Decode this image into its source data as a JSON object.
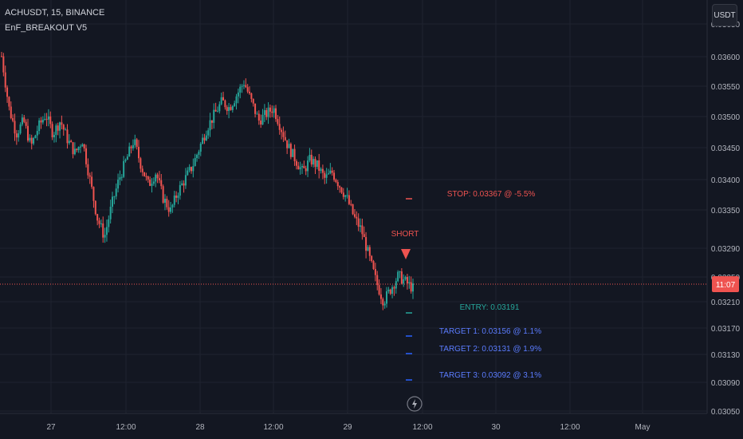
{
  "header": {
    "symbol_line": "ACHUSDT, 15, BINANCE",
    "indicator_name": "EnF_BREAKOUT V5",
    "currency_button": "USDT"
  },
  "price_axis": {
    "labels": [
      "0.03650",
      "0.03600",
      "0.03550",
      "0.03500",
      "0.03450",
      "0.03400",
      "0.03350",
      "0.03290",
      "0.03250",
      "0.03210",
      "0.03170",
      "0.03130",
      "0.03090",
      "0.03050"
    ],
    "current_price_tag": "11:07"
  },
  "time_axis": {
    "labels": [
      "27",
      "12:00",
      "28",
      "12:00",
      "29",
      "12:00",
      "30",
      "12:00",
      "May"
    ]
  },
  "annotations": {
    "stop": "STOP: 0.03367 @ -5.5%",
    "short": "SHORT",
    "entry": "ENTRY: 0.03191",
    "target1": "TARGET 1: 0.03156 @ 1.1%",
    "target2": "TARGET 2: 0.03131 @ 1.9%",
    "target3": "TARGET 3: 0.03092 @ 3.1%"
  },
  "colors": {
    "background": "#131722",
    "up": "#26a69a",
    "down": "#ef5350",
    "stop": "#ef5350",
    "entry": "#26a69a",
    "target": "#2962ff",
    "grid": "#1f2330"
  },
  "chart_data": {
    "type": "candlestick",
    "description_series": "ACHUSDT 15m close approximations",
    "closes": [
      0.036,
      0.0352,
      0.0348,
      0.035,
      0.0346,
      0.0349,
      0.0351,
      0.0348,
      0.035,
      0.0347,
      0.0345,
      0.0347,
      0.0341,
      0.0335,
      0.0332,
      0.0337,
      0.0341,
      0.0344,
      0.0347,
      0.0343,
      0.034,
      0.0342,
      0.0338,
      0.0336,
      0.0339,
      0.0341,
      0.0343,
      0.0346,
      0.0349,
      0.0351,
      0.0353,
      0.0352,
      0.0354,
      0.0356,
      0.0353,
      0.035,
      0.0351,
      0.0352,
      0.0349,
      0.0346,
      0.0344,
      0.0342,
      0.0344,
      0.0343,
      0.0341,
      0.0342,
      0.034,
      0.0338,
      0.0335,
      0.0333,
      0.0329,
      0.0325,
      0.0322,
      0.0324,
      0.0326,
      0.0325,
      0.0324
    ]
  }
}
